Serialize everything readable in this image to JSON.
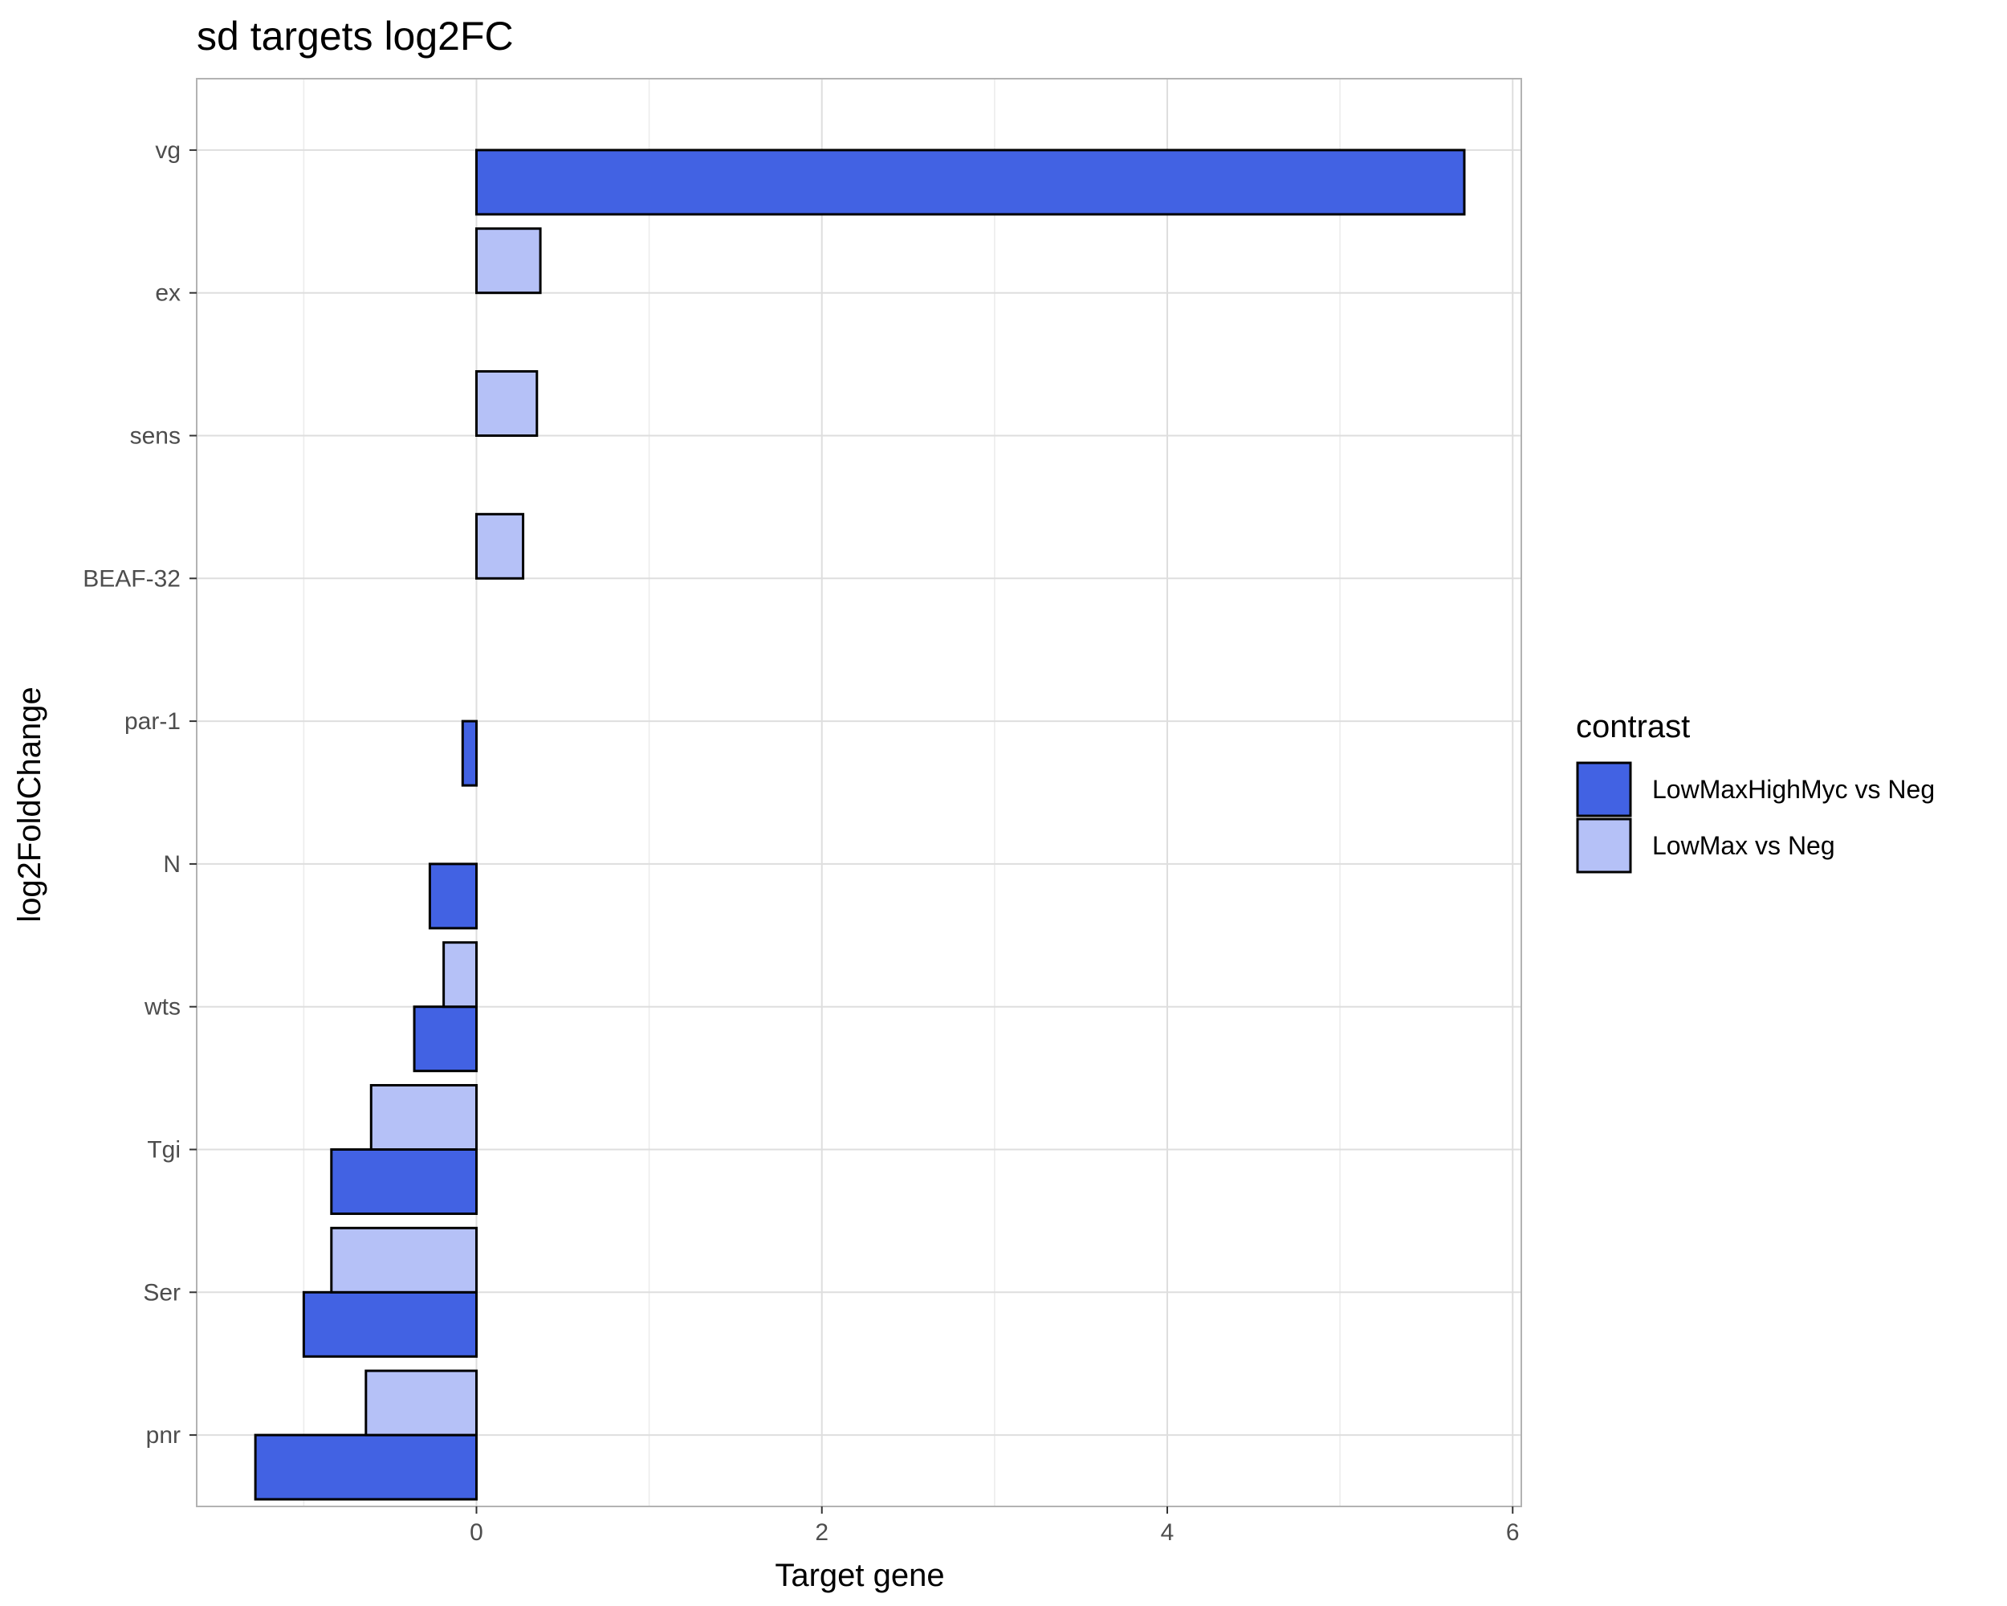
{
  "chart_data": {
    "type": "bar",
    "orientation": "horizontal",
    "title": "sd targets log2FC",
    "xlabel": "Target gene",
    "ylabel": "log2FoldChange",
    "xlim": [
      -1.62,
      6.05
    ],
    "xticks": [
      0,
      2,
      4,
      6
    ],
    "grid": true,
    "legend_position": "right",
    "legend_title": "contrast",
    "categories": [
      "vg",
      "ex",
      "sens",
      "BEAF-32",
      "par-1",
      "N",
      "wts",
      "Tgi",
      "Ser",
      "pnr"
    ],
    "series": [
      {
        "name": "LowMaxHighMyc vs Neg",
        "color": "#4262e3",
        "values": [
          5.72,
          0.0,
          0.0,
          0.0,
          -0.08,
          -0.27,
          -0.36,
          -0.84,
          -1.0,
          -1.28
        ]
      },
      {
        "name": "LowMax vs Neg",
        "color": "#b5c1f7",
        "values": [
          0.0,
          0.37,
          0.35,
          0.27,
          0.0,
          0.0,
          -0.19,
          -0.61,
          -0.84,
          -0.64
        ]
      }
    ]
  }
}
